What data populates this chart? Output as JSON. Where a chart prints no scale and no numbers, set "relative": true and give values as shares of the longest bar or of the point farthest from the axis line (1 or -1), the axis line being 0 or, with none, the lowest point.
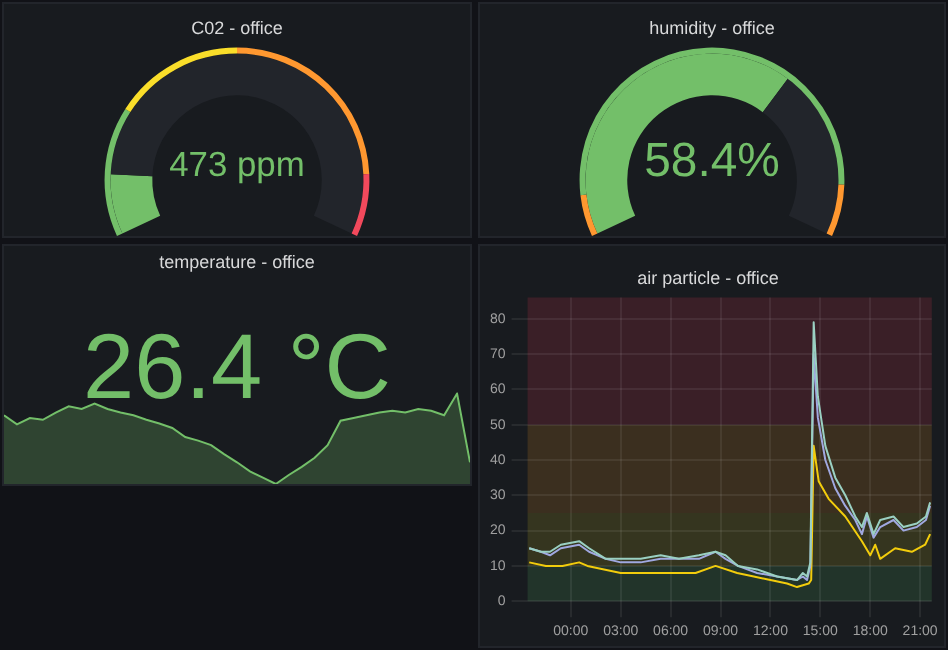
{
  "chart_data": [
    {
      "type": "donut",
      "title": "C02 - office",
      "annotations": [
        "473 ppm"
      ],
      "series": [
        {
          "values": [
            12,
            88
          ],
          "colors": [
            "#73bf69",
            "#22252b"
          ]
        },
        {
          "values": [
            25,
            25,
            38,
            12
          ],
          "colors": [
            "#73bf69",
            "#fade2a",
            "#ff9830",
            "#f2495c"
          ]
        }
      ]
    },
    {
      "type": "donut",
      "title": "humidity - office",
      "annotations": [
        "58.4%"
      ],
      "series": [
        {
          "values": [
            66,
            34
          ],
          "colors": [
            "#73bf69",
            "#22252b"
          ]
        },
        {
          "values": [
            8,
            82,
            10
          ],
          "colors": [
            "#ff9830",
            "#73bf69",
            "#ff9830"
          ]
        }
      ]
    },
    {
      "type": "area",
      "title": "temperature - office",
      "annotations": [
        "26.4 °C"
      ],
      "relative": true,
      "color": "#73bf69",
      "categories": [
        null,
        null,
        null,
        null,
        null,
        null,
        null,
        null,
        null,
        null,
        null,
        null,
        null,
        null,
        null,
        null,
        null,
        null,
        null,
        null,
        null,
        null,
        null,
        null,
        null,
        null,
        null,
        null,
        null,
        null,
        null,
        null,
        null,
        null,
        null,
        null,
        null
      ],
      "values": [
        0.76,
        0.66,
        0.73,
        0.71,
        0.79,
        0.86,
        0.83,
        0.89,
        0.83,
        0.79,
        0.76,
        0.71,
        0.67,
        0.62,
        0.52,
        0.48,
        0.43,
        0.33,
        0.24,
        0.14,
        0.07,
        0,
        0.1,
        0.19,
        0.29,
        0.43,
        0.7,
        0.73,
        0.76,
        0.79,
        0.81,
        0.79,
        0.83,
        0.81,
        0.76,
        1,
        0.24
      ]
    },
    {
      "type": "line",
      "title": "air particle - office",
      "grid": true,
      "xlim": [
        -2.6,
        21.7
      ],
      "xticks": [
        {
          "value": 0,
          "label": "00:00"
        },
        {
          "value": 3,
          "label": "03:00"
        },
        {
          "value": 6,
          "label": "06:00"
        },
        {
          "value": 9,
          "label": "09:00"
        },
        {
          "value": 12,
          "label": "12:00"
        },
        {
          "value": 15,
          "label": "15:00"
        },
        {
          "value": 18,
          "label": "18:00"
        },
        {
          "value": 21,
          "label": "21:00"
        }
      ],
      "ylim": [
        0,
        86
      ],
      "yticks": [
        0,
        10,
        20,
        30,
        40,
        50,
        60,
        70,
        80
      ],
      "bands": [
        {
          "axis": "y",
          "from": 0,
          "to": 10,
          "color": "#22342a"
        },
        {
          "axis": "y",
          "from": 10,
          "to": 25,
          "color": "#35351f"
        },
        {
          "axis": "y",
          "from": 25,
          "to": 50,
          "color": "#3b2f1f"
        },
        {
          "axis": "y",
          "from": 50,
          "to": 86,
          "color": "#3a1f27"
        }
      ],
      "series": [
        {
          "color": "#9ad0c2",
          "x": [
            -2.5,
            -1.8,
            -1.25,
            -0.6,
            0.5,
            1.1,
            2.1,
            3.0,
            4.2,
            5.4,
            6.5,
            7.7,
            8.7,
            9.3,
            10.05,
            11.2,
            12.4,
            13.6,
            13.95,
            14.2,
            14.4,
            14.6,
            14.85,
            15.3,
            15.9,
            16.5,
            17.1,
            17.5,
            17.8,
            18.2,
            18.6,
            19.4,
            20.0,
            20.8,
            21.35,
            21.6
          ],
          "values": [
            15,
            14,
            14,
            16,
            17,
            15,
            12,
            12,
            12,
            13,
            12,
            13,
            14,
            13,
            10,
            9,
            7,
            6,
            8,
            7,
            11,
            79,
            58,
            44,
            35,
            30,
            24,
            21,
            25,
            19,
            23,
            24,
            21,
            22,
            24,
            28
          ]
        },
        {
          "color": "#a0a8e0",
          "x": [
            -2.5,
            -1.8,
            -1.25,
            -0.6,
            0.5,
            1.1,
            2.1,
            3.0,
            4.2,
            5.4,
            6.5,
            7.7,
            8.7,
            9.3,
            10.05,
            11.2,
            12.4,
            13.6,
            13.95,
            14.2,
            14.4,
            14.6,
            14.85,
            15.3,
            15.9,
            16.5,
            17.1,
            17.5,
            17.8,
            18.2,
            18.6,
            19.4,
            20.0,
            20.8,
            21.35,
            21.6
          ],
          "values": [
            15,
            14,
            13,
            15,
            16,
            14,
            12,
            11,
            11,
            12,
            12,
            12,
            14,
            12,
            10,
            8,
            7,
            6,
            7,
            6,
            10,
            70,
            52,
            40,
            32,
            27,
            23,
            19,
            24,
            18,
            21,
            23,
            20,
            21,
            23,
            27
          ]
        },
        {
          "color": "#f2cc0c",
          "x": [
            -2.5,
            -1.5,
            -0.5,
            0.5,
            1,
            2,
            3,
            4.5,
            6,
            7.5,
            8.7,
            10,
            11,
            12,
            13,
            13.6,
            14.3,
            14.45,
            14.6,
            14.9,
            15.5,
            16.5,
            17.5,
            18,
            18.3,
            18.6,
            19.5,
            20.5,
            21.3,
            21.6
          ],
          "values": [
            11,
            10,
            10,
            11,
            10,
            9,
            8,
            8,
            8,
            8,
            10,
            8,
            7,
            6,
            5,
            4,
            5,
            6,
            44,
            34,
            29,
            24,
            17,
            13,
            16,
            12,
            15,
            14,
            16,
            19
          ]
        }
      ]
    }
  ]
}
